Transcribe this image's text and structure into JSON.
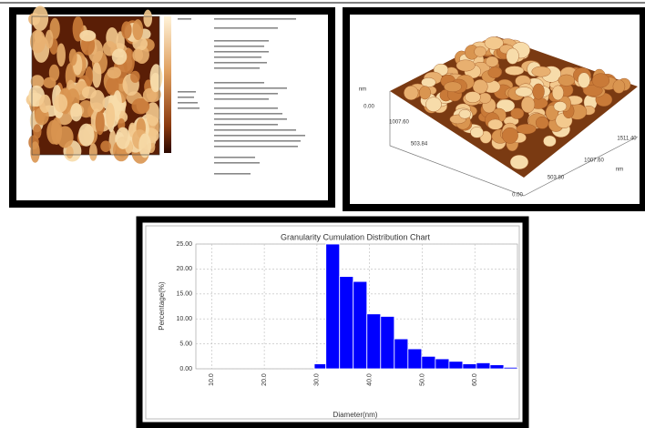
{
  "surface_3d": {
    "labels": [
      "0.00",
      "1007.60",
      "503.84",
      "0.00",
      "503.80",
      "1007.60",
      "1511.40",
      "nm",
      "nm"
    ]
  },
  "chart_data": {
    "type": "histogram",
    "title": "Granularity Cumulation Distribution Chart",
    "y_label": "Percentage(%)",
    "x_label": "Diameter(nm)",
    "bins": [
      29.5,
      31.7,
      34.3,
      36.9,
      39.5,
      42.1,
      44.7,
      47.3,
      49.9,
      52.5,
      55.1,
      57.7,
      60.3,
      62.9,
      65.5,
      68.1
    ],
    "values": [
      1,
      25,
      18.5,
      17.5,
      11,
      10.5,
      6,
      4,
      2.5,
      2,
      1.5,
      1,
      1.2,
      0.8,
      0.3
    ],
    "color": "#0000ff",
    "xlim": [
      7,
      68.1
    ],
    "ylim": [
      0,
      25
    ],
    "xticks": [
      {
        "value": 10,
        "label": "10.0"
      },
      {
        "value": 20,
        "label": "20.0"
      },
      {
        "value": 30,
        "label": "30.0"
      },
      {
        "value": 40,
        "label": "40.0"
      },
      {
        "value": 50,
        "label": "50.0"
      },
      {
        "value": 60,
        "label": "60.0"
      }
    ],
    "yticks": [
      {
        "value": 0,
        "label": "0.00"
      },
      {
        "value": 5,
        "label": "5.00"
      },
      {
        "value": 10,
        "label": "10.00"
      },
      {
        "value": 15,
        "label": "15.00"
      },
      {
        "value": 20,
        "label": "20.00"
      },
      {
        "value": 25,
        "label": "25.00"
      }
    ],
    "grid": true
  }
}
